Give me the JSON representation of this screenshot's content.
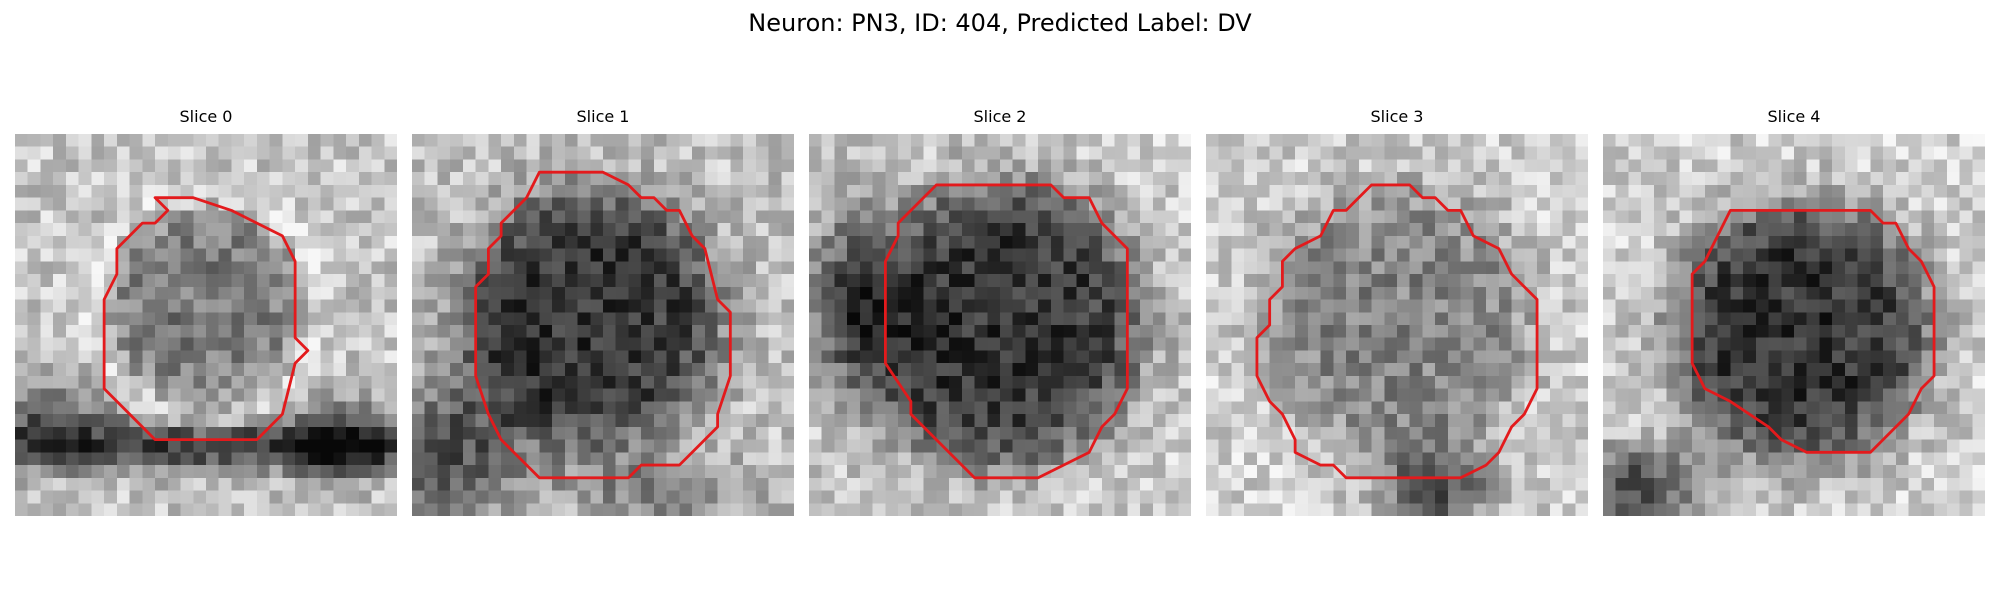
{
  "figure": {
    "title": "Neuron: PN3, ID: 404, Predicted Label: DV"
  },
  "colors": {
    "contour": "#e31a1c",
    "background": "#ffffff",
    "text": "#000000"
  },
  "slices": [
    {
      "title": "Slice 0"
    },
    {
      "title": "Slice 1"
    },
    {
      "title": "Slice 2"
    },
    {
      "title": "Slice 3"
    },
    {
      "title": "Slice 4"
    }
  ]
}
